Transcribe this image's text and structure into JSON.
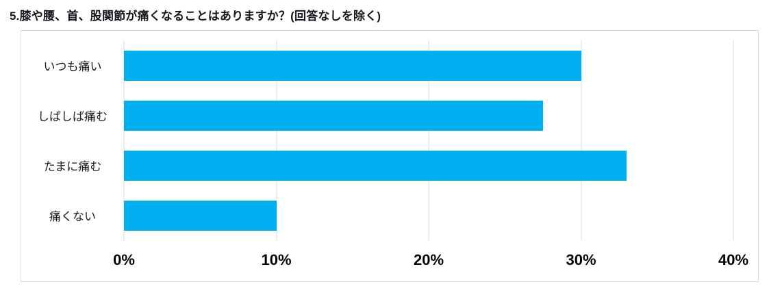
{
  "chart_data": {
    "type": "bar",
    "orientation": "horizontal",
    "title": "5.膝や腰、首、股関節が痛くなることはありますか？(回答なしを除く)",
    "categories": [
      "いつも痛い",
      "しばしば痛む",
      "たまに痛む",
      "痛くない"
    ],
    "values": [
      30,
      27.5,
      33,
      10
    ],
    "unit": "%",
    "xlabel": "",
    "ylabel": "",
    "xlim": [
      0,
      40
    ],
    "x_ticks": [
      {
        "value": 0,
        "label": "0%"
      },
      {
        "value": 10,
        "label": "10%"
      },
      {
        "value": 20,
        "label": "20%"
      },
      {
        "value": 30,
        "label": "30%"
      },
      {
        "value": 40,
        "label": "40%"
      }
    ],
    "grid": true,
    "legend": false,
    "bar_color": "#00b0f0",
    "gridline_color": "#d9d9d9",
    "plot_border_color": "#d9d9d9"
  }
}
